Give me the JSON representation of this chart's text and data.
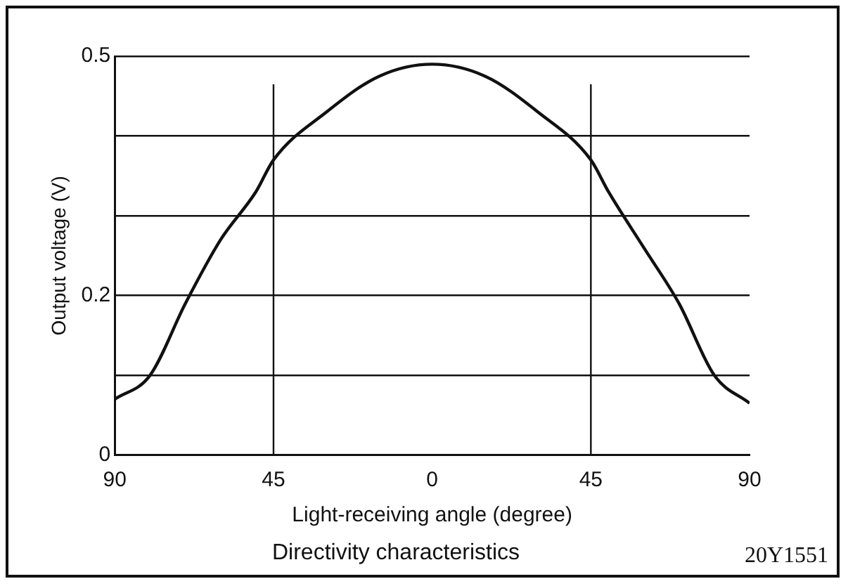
{
  "chart_data": {
    "type": "line",
    "title": "Directivity characteristics",
    "xlabel": "Light-receiving angle (degree)",
    "ylabel": "Output voltage (V)",
    "annotations": [
      "20Y1551"
    ],
    "x": [
      -90,
      -80,
      -70,
      -60,
      -50,
      -45,
      -30,
      -15,
      0,
      15,
      30,
      45,
      50,
      60,
      70,
      80,
      90
    ],
    "series": [
      {
        "color": "#111111",
        "values": [
          0.07,
          0.1,
          0.19,
          0.27,
          0.33,
          0.37,
          0.43,
          0.475,
          0.49,
          0.475,
          0.43,
          0.37,
          0.33,
          0.26,
          0.19,
          0.1,
          0.065
        ]
      }
    ],
    "xlim": [
      -90,
      90
    ],
    "xticks": [
      {
        "value": -90,
        "label": "90"
      },
      {
        "value": -45,
        "label": "45"
      },
      0,
      45,
      90
    ],
    "ylim": [
      0,
      0.5
    ],
    "yticks": [
      0,
      {
        "value": 0.1,
        "label": null
      },
      0.2,
      {
        "value": 0.3,
        "label": null
      },
      {
        "value": 0.4,
        "label": null
      },
      0.5
    ],
    "grid": "y",
    "ref_lines": [
      {
        "axis": "x",
        "value": -45
      },
      {
        "axis": "x",
        "value": 45
      }
    ],
    "legend": false,
    "marker": "none",
    "line_style": "solid"
  }
}
